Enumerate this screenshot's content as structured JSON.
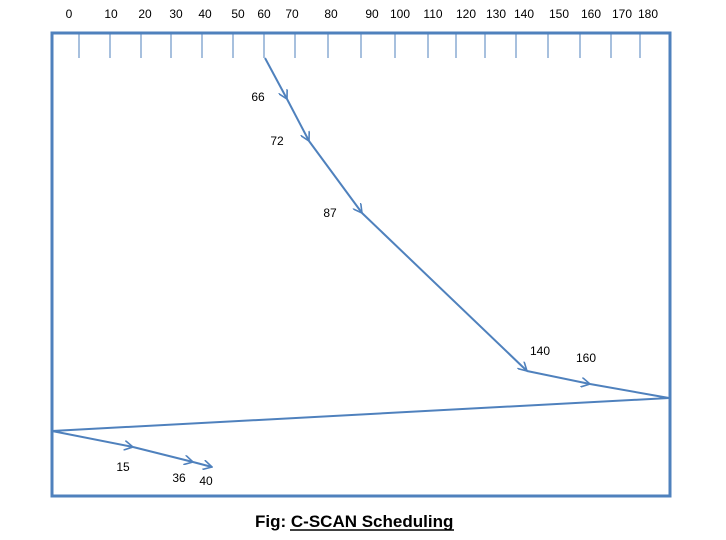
{
  "caption": {
    "prefix": "Fig: ",
    "title": "C-SCAN Scheduling"
  },
  "axis": {
    "ticks": [
      "0",
      "10",
      "20",
      "30",
      "40",
      "50",
      "60",
      "70",
      "80",
      "90",
      "100",
      "110",
      "120",
      "130",
      "140",
      "150",
      "160",
      "170",
      "180"
    ]
  },
  "path": {
    "start": "60",
    "requests": [
      "66",
      "72",
      "87",
      "140",
      "160",
      "15",
      "36",
      "40"
    ]
  },
  "colors": {
    "line": "#4F81BD",
    "text": "#000000"
  }
}
